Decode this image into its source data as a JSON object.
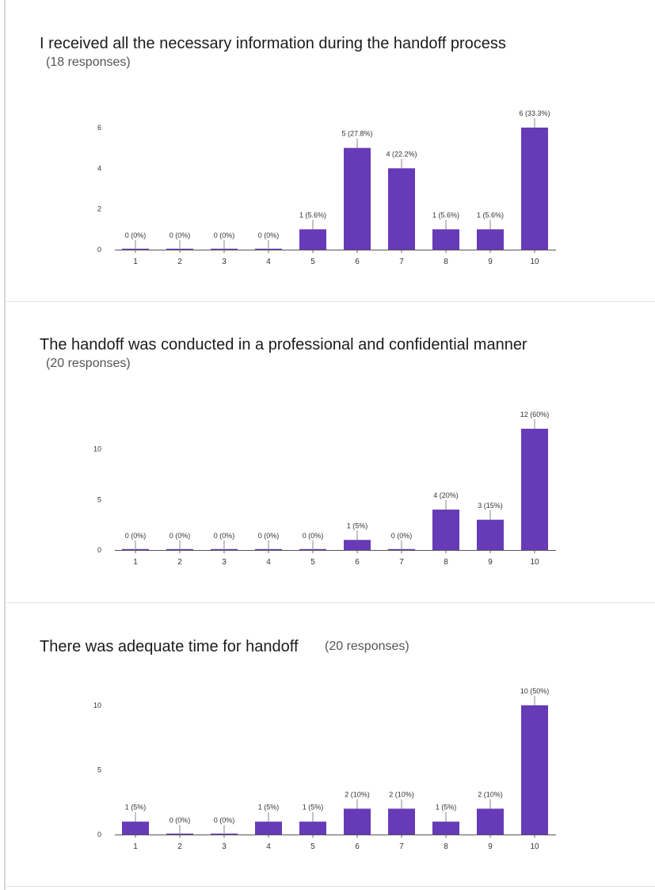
{
  "chart_data": [
    {
      "type": "bar",
      "title": "I received all the necessary information during the handoff process",
      "subtitle": "(18 responses)",
      "categories": [
        "1",
        "2",
        "3",
        "4",
        "5",
        "6",
        "7",
        "8",
        "9",
        "10"
      ],
      "values": [
        0,
        0,
        0,
        0,
        1,
        5,
        4,
        1,
        1,
        6
      ],
      "data_labels": [
        "0 (0%)",
        "0 (0%)",
        "0 (0%)",
        "0 (0%)",
        "1 (5.6%)",
        "5 (27.8%)",
        "4 (22.2%)",
        "1 (5.6%)",
        "1 (5.6%)",
        "6 (33.3%)"
      ],
      "y_ticks": [
        "0",
        "2",
        "4",
        "6"
      ],
      "ylim": [
        0,
        6
      ],
      "color": "#673ab7",
      "grid": false
    },
    {
      "type": "bar",
      "title": "The handoff was conducted in a professional and confidential manner",
      "subtitle": "(20 responses)",
      "categories": [
        "1",
        "2",
        "3",
        "4",
        "5",
        "6",
        "7",
        "8",
        "9",
        "10"
      ],
      "values": [
        0,
        0,
        0,
        0,
        0,
        1,
        0,
        4,
        3,
        12
      ],
      "data_labels": [
        "0 (0%)",
        "0 (0%)",
        "0 (0%)",
        "0 (0%)",
        "0 (0%)",
        "1 (5%)",
        "0 (0%)",
        "4 (20%)",
        "3 (15%)",
        "12 (60%)"
      ],
      "y_ticks": [
        "0",
        "5",
        "10"
      ],
      "ylim": [
        0,
        12
      ],
      "color": "#673ab7",
      "grid": false
    },
    {
      "type": "bar",
      "title": "There was adequate time for handoff",
      "subtitle": "(20 responses)",
      "categories": [
        "1",
        "2",
        "3",
        "4",
        "5",
        "6",
        "7",
        "8",
        "9",
        "10"
      ],
      "values": [
        1,
        0,
        0,
        1,
        1,
        2,
        2,
        1,
        2,
        10
      ],
      "data_labels": [
        "1 (5%)",
        "0 (0%)",
        "0 (0%)",
        "1 (5%)",
        "1 (5%)",
        "2 (10%)",
        "2 (10%)",
        "1 (5%)",
        "2 (10%)",
        "10 (50%)"
      ],
      "y_ticks": [
        "0",
        "5",
        "10"
      ],
      "ylim": [
        0,
        10
      ],
      "color": "#673ab7",
      "grid": false
    }
  ]
}
